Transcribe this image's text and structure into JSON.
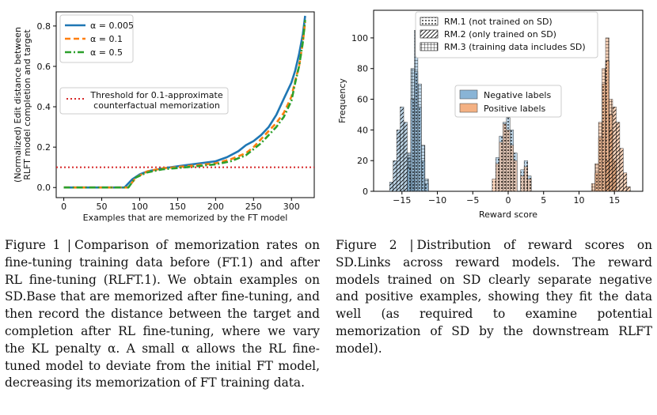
{
  "chart_data": [
    {
      "type": "line",
      "xlabel": "Examples that are memorized by the FT model",
      "ylabel": [
        "(Normalized) Edit distance between",
        "RLFT model completion and target"
      ],
      "xlim": [
        -10,
        330
      ],
      "ylim": [
        -0.05,
        0.87
      ],
      "xticks": [
        0,
        50,
        100,
        150,
        200,
        250,
        300
      ],
      "yticks": [
        0.0,
        0.2,
        0.4,
        0.6,
        0.8
      ],
      "grid": false,
      "legend_placement": "upper-left",
      "series": [
        {
          "name": "α = 0.005",
          "color": "#1f77b4",
          "style": "solid",
          "x": [
            0,
            80,
            90,
            100,
            110,
            130,
            160,
            200,
            215,
            230,
            240,
            250,
            260,
            270,
            280,
            290,
            300,
            305,
            310,
            315,
            318
          ],
          "y": [
            0.0,
            0.0,
            0.04,
            0.065,
            0.08,
            0.095,
            0.11,
            0.13,
            0.15,
            0.18,
            0.21,
            0.23,
            0.26,
            0.3,
            0.36,
            0.44,
            0.52,
            0.58,
            0.66,
            0.76,
            0.85
          ]
        },
        {
          "name": "α = 0.1",
          "color": "#ff7f0e",
          "style": "dashed",
          "x": [
            0,
            85,
            95,
            110,
            130,
            160,
            200,
            220,
            240,
            250,
            260,
            270,
            280,
            290,
            300,
            305,
            310,
            315,
            318
          ],
          "y": [
            0.0,
            0.0,
            0.05,
            0.08,
            0.095,
            0.105,
            0.12,
            0.14,
            0.17,
            0.2,
            0.24,
            0.28,
            0.32,
            0.37,
            0.45,
            0.53,
            0.6,
            0.72,
            0.82
          ]
        },
        {
          "name": "α = 0.5",
          "color": "#2ca02c",
          "style": "dashdot",
          "x": [
            0,
            85,
            95,
            110,
            130,
            160,
            200,
            220,
            240,
            250,
            260,
            270,
            280,
            290,
            300,
            305,
            310,
            315,
            318
          ],
          "y": [
            0.0,
            0.0,
            0.05,
            0.075,
            0.09,
            0.1,
            0.115,
            0.13,
            0.16,
            0.19,
            0.22,
            0.26,
            0.3,
            0.35,
            0.43,
            0.52,
            0.6,
            0.72,
            0.83
          ]
        }
      ],
      "threshold": {
        "y": 0.1,
        "color": "#d62728",
        "label": [
          "Threshold for 0.1-approximate",
          "counterfactual memorization"
        ]
      }
    },
    {
      "type": "histogram",
      "xlabel": "Reward score",
      "ylabel": "Frequency",
      "xlim": [
        -19,
        19
      ],
      "ylim": [
        0,
        118
      ],
      "xticks": [
        -15,
        -10,
        -5,
        0,
        5,
        10,
        15
      ],
      "yticks": [
        0,
        20,
        40,
        60,
        80,
        100
      ],
      "grid": false,
      "legend_placement": "upper-center",
      "hatch_legend": [
        {
          "name": "RM.1 (not trained on SD)",
          "hatch": "dots"
        },
        {
          "name": "RM.2 (only trained on SD)",
          "hatch": "diagonal"
        },
        {
          "name": "RM.3 (training data includes SD)",
          "hatch": "grid"
        }
      ],
      "color_legend": [
        {
          "name": "Negative labels",
          "color": "#89b4d6"
        },
        {
          "name": "Positive labels",
          "color": "#f4b183"
        }
      ],
      "distributions": [
        {
          "label": "Negative labels",
          "hatch": "diagonal",
          "bins": [
            [
              -16.5,
              6
            ],
            [
              -16,
              20
            ],
            [
              -15.5,
              40
            ],
            [
              -15,
              55
            ],
            [
              -14.5,
              45
            ],
            [
              -14,
              22
            ],
            [
              -13.5,
              8
            ]
          ]
        },
        {
          "label": "Negative labels",
          "hatch": "grid",
          "bins": [
            [
              -14,
              25
            ],
            [
              -13.5,
              80
            ],
            [
              -13,
              105
            ],
            [
              -12.5,
              70
            ],
            [
              -12,
              30
            ],
            [
              -11.5,
              8
            ]
          ]
        },
        {
          "label": "Negative labels",
          "hatch": "dots",
          "bins": [
            [
              -14,
              15
            ],
            [
              -13.5,
              60
            ],
            [
              -13,
              78
            ],
            [
              -12.5,
              55
            ],
            [
              -12,
              20
            ],
            [
              -11.5,
              5
            ]
          ]
        },
        {
          "label": "Negative labels",
          "hatch": "dots",
          "bins": [
            [
              -1.5,
              22
            ],
            [
              -1,
              36
            ],
            [
              -0.5,
              45
            ],
            [
              0,
              48
            ],
            [
              0.5,
              40
            ],
            [
              1,
              25
            ],
            [
              2,
              14
            ],
            [
              2.5,
              20
            ],
            [
              3,
              10
            ]
          ]
        },
        {
          "label": "Positive labels",
          "hatch": "dots",
          "bins": [
            [
              -2,
              8
            ],
            [
              -1.5,
              18
            ],
            [
              -1,
              32
            ],
            [
              -0.5,
              44
            ],
            [
              0,
              40
            ],
            [
              0.5,
              30
            ],
            [
              1,
              20
            ],
            [
              2,
              10
            ],
            [
              2.5,
              16
            ],
            [
              3,
              8
            ]
          ]
        },
        {
          "label": "Positive labels",
          "hatch": "grid",
          "bins": [
            [
              12,
              5
            ],
            [
              12.5,
              18
            ],
            [
              13,
              45
            ],
            [
              13.5,
              80
            ],
            [
              14,
              100
            ],
            [
              14.5,
              60
            ],
            [
              15,
              20
            ]
          ]
        },
        {
          "label": "Positive labels",
          "hatch": "dots",
          "bins": [
            [
              12.5,
              12
            ],
            [
              13,
              35
            ],
            [
              13.5,
              70
            ],
            [
              14,
              85
            ],
            [
              14.5,
              50
            ],
            [
              15,
              15
            ]
          ]
        },
        {
          "label": "Positive labels",
          "hatch": "diagonal",
          "bins": [
            [
              14,
              20
            ],
            [
              14.5,
              40
            ],
            [
              15,
              55
            ],
            [
              15.5,
              45
            ],
            [
              16,
              28
            ],
            [
              16.5,
              12
            ],
            [
              17,
              3
            ]
          ]
        }
      ]
    }
  ],
  "captions": {
    "left": {
      "label": "Figure 1 |",
      "text": "Comparison of memorization rates on fine-tuning training data before (FT.1) and after RL fine-tuning (RLFT.1). We obtain examples on SD.Base that are memorized after fine-tuning, and then record the distance between the target and completion after RL fine-tuning, where we vary the KL penalty α. A small α allows the RL fine-tuned model to deviate from the initial FT model, decreasing its memorization of FT training data."
    },
    "right": {
      "label": "Figure 2 |",
      "text": "Distribution of reward scores on SD.Links across reward models. The reward models trained on SD clearly separate negative and positive examples, showing they fit the data well (as required to examine potential memorization of SD by the downstream RLFT model)."
    }
  }
}
